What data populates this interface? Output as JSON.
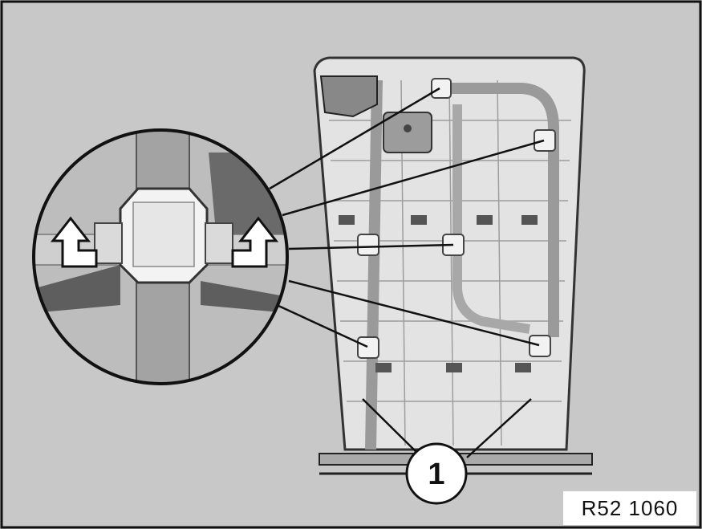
{
  "diagram": {
    "reference_code": "R52 1060",
    "callout_number": "1",
    "colors": {
      "background": "#c8c8c8",
      "panel": "#e3e3e3",
      "frame_tube": "#9a9a9a",
      "line": "#111111",
      "clip": "#f2f2f2",
      "arrow_fill": "#ffffff"
    },
    "icons": [
      "arrow-up-left-icon",
      "arrow-up-right-icon"
    ]
  }
}
